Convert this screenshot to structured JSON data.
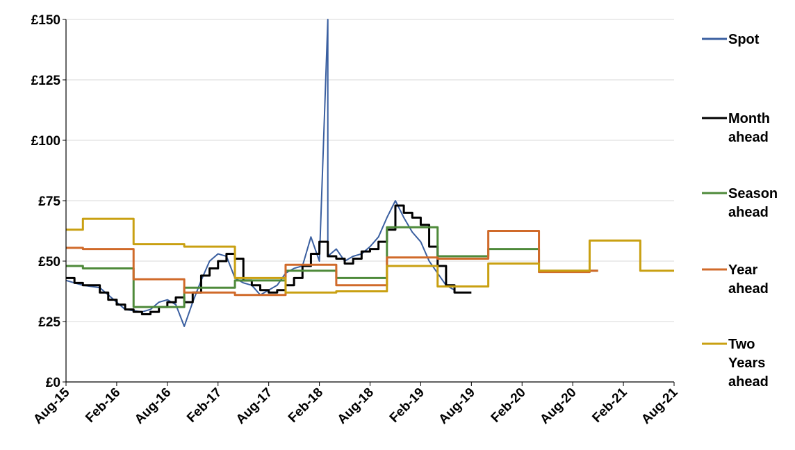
{
  "chart_data": {
    "type": "line",
    "title": "",
    "xlabel": "",
    "ylabel": "",
    "ylim": [
      0,
      150
    ],
    "xlim": [
      "2015-08",
      "2021-08"
    ],
    "y_ticks": [
      0,
      25,
      50,
      75,
      100,
      125,
      150
    ],
    "y_tick_labels": [
      "£0",
      "£25",
      "£50",
      "£75",
      "£100",
      "£125",
      "£150"
    ],
    "x_tick_labels": [
      "Aug-15",
      "Feb-16",
      "Aug-16",
      "Feb-17",
      "Aug-17",
      "Feb-18",
      "Aug-18",
      "Feb-19",
      "Aug-19",
      "Feb-20",
      "Aug-20",
      "Feb-21",
      "Aug-21"
    ],
    "grid": "horizontal",
    "legend_position": "right",
    "series": [
      {
        "name": "Spot",
        "color": "#3a5fa0",
        "step": false,
        "points": [
          [
            "2015-08",
            42
          ],
          [
            "2015-10",
            40
          ],
          [
            "2015-12",
            39
          ],
          [
            "2016-02",
            33
          ],
          [
            "2016-03",
            30
          ],
          [
            "2016-05",
            29
          ],
          [
            "2016-06",
            30
          ],
          [
            "2016-07",
            33
          ],
          [
            "2016-08",
            34
          ],
          [
            "2016-09",
            32
          ],
          [
            "2016-10",
            23
          ],
          [
            "2016-11",
            33
          ],
          [
            "2016-12",
            42
          ],
          [
            "2017-01",
            50
          ],
          [
            "2017-02",
            53
          ],
          [
            "2017-03",
            52
          ],
          [
            "2017-04",
            43
          ],
          [
            "2017-05",
            41
          ],
          [
            "2017-06",
            40
          ],
          [
            "2017-07",
            36
          ],
          [
            "2017-08",
            38
          ],
          [
            "2017-09",
            40
          ],
          [
            "2017-10",
            45
          ],
          [
            "2017-11",
            47
          ],
          [
            "2017-12",
            48
          ],
          [
            "2018-01",
            60
          ],
          [
            "2018-02",
            50
          ],
          [
            "2018-03",
            150
          ],
          [
            "2018-03",
            52
          ],
          [
            "2018-04",
            55
          ],
          [
            "2018-05",
            50
          ],
          [
            "2018-06",
            52
          ],
          [
            "2018-07",
            53
          ],
          [
            "2018-08",
            56
          ],
          [
            "2018-09",
            60
          ],
          [
            "2018-10",
            68
          ],
          [
            "2018-11",
            75
          ],
          [
            "2018-12",
            68
          ],
          [
            "2019-01",
            62
          ],
          [
            "2019-02",
            58
          ],
          [
            "2019-03",
            50
          ],
          [
            "2019-04",
            45
          ],
          [
            "2019-05",
            40
          ],
          [
            "2019-06",
            38
          ]
        ]
      },
      {
        "name": "Month ahead",
        "color": "#000000",
        "step": true,
        "points": [
          [
            "2015-08",
            43
          ],
          [
            "2015-09",
            41
          ],
          [
            "2015-10",
            40
          ],
          [
            "2015-11",
            40
          ],
          [
            "2015-12",
            37
          ],
          [
            "2016-01",
            34
          ],
          [
            "2016-02",
            32
          ],
          [
            "2016-03",
            30
          ],
          [
            "2016-04",
            29
          ],
          [
            "2016-05",
            28
          ],
          [
            "2016-06",
            29
          ],
          [
            "2016-07",
            31
          ],
          [
            "2016-08",
            33
          ],
          [
            "2016-09",
            35
          ],
          [
            "2016-10",
            33
          ],
          [
            "2016-11",
            37
          ],
          [
            "2016-12",
            44
          ],
          [
            "2017-01",
            47
          ],
          [
            "2017-02",
            50
          ],
          [
            "2017-03",
            53
          ],
          [
            "2017-04",
            51
          ],
          [
            "2017-05",
            42
          ],
          [
            "2017-06",
            40
          ],
          [
            "2017-07",
            38
          ],
          [
            "2017-08",
            37
          ],
          [
            "2017-09",
            38
          ],
          [
            "2017-10",
            40
          ],
          [
            "2017-11",
            43
          ],
          [
            "2017-12",
            48
          ],
          [
            "2018-01",
            53
          ],
          [
            "2018-02",
            58
          ],
          [
            "2018-03",
            52
          ],
          [
            "2018-04",
            51
          ],
          [
            "2018-05",
            49
          ],
          [
            "2018-06",
            51
          ],
          [
            "2018-07",
            54
          ],
          [
            "2018-08",
            55
          ],
          [
            "2018-09",
            58
          ],
          [
            "2018-10",
            63
          ],
          [
            "2018-11",
            73
          ],
          [
            "2018-12",
            70
          ],
          [
            "2019-01",
            68
          ],
          [
            "2019-02",
            65
          ],
          [
            "2019-03",
            56
          ],
          [
            "2019-04",
            48
          ],
          [
            "2019-05",
            40
          ],
          [
            "2019-06",
            37
          ],
          [
            "2019-07",
            37
          ]
        ]
      },
      {
        "name": "Season ahead",
        "color": "#4e8a3a",
        "step": true,
        "points": [
          [
            "2015-08",
            48
          ],
          [
            "2015-10",
            47
          ],
          [
            "2016-04",
            31
          ],
          [
            "2016-10",
            39
          ],
          [
            "2017-04",
            42
          ],
          [
            "2017-10",
            46
          ],
          [
            "2018-04",
            43
          ],
          [
            "2018-10",
            64
          ],
          [
            "2019-04",
            52
          ],
          [
            "2019-10",
            55
          ],
          [
            "2020-04",
            46
          ],
          [
            "2020-10",
            46
          ]
        ]
      },
      {
        "name": "Year ahead",
        "color": "#d06a2a",
        "step": true,
        "points": [
          [
            "2015-08",
            55.5
          ],
          [
            "2015-10",
            55
          ],
          [
            "2016-04",
            42.5
          ],
          [
            "2016-10",
            37
          ],
          [
            "2017-04",
            36
          ],
          [
            "2017-10",
            48.5
          ],
          [
            "2018-04",
            40
          ],
          [
            "2018-10",
            51.5
          ],
          [
            "2019-04",
            51
          ],
          [
            "2019-10",
            62.5
          ],
          [
            "2020-04",
            45.5
          ],
          [
            "2020-10",
            46
          ]
        ]
      },
      {
        "name": "Two Years ahead",
        "color": "#c9a012",
        "step": true,
        "points": [
          [
            "2015-08",
            63
          ],
          [
            "2015-10",
            67.5
          ],
          [
            "2016-04",
            57
          ],
          [
            "2016-10",
            56
          ],
          [
            "2017-04",
            43
          ],
          [
            "2017-10",
            37
          ],
          [
            "2018-04",
            37.5
          ],
          [
            "2018-10",
            48
          ],
          [
            "2019-04",
            39.5
          ],
          [
            "2019-10",
            49
          ],
          [
            "2020-04",
            46
          ],
          [
            "2020-10",
            58.5
          ],
          [
            "2021-04",
            46
          ],
          [
            "2021-08",
            46
          ]
        ]
      }
    ],
    "legend": [
      {
        "lines": [
          "Spot"
        ],
        "color": "#3a5fa0"
      },
      {
        "lines": [
          "Month",
          "ahead"
        ],
        "color": "#000000"
      },
      {
        "lines": [
          "Season",
          "ahead"
        ],
        "color": "#4e8a3a"
      },
      {
        "lines": [
          "Year",
          "ahead"
        ],
        "color": "#d06a2a"
      },
      {
        "lines": [
          "Two",
          "Years",
          "ahead"
        ],
        "color": "#c9a012"
      }
    ]
  }
}
